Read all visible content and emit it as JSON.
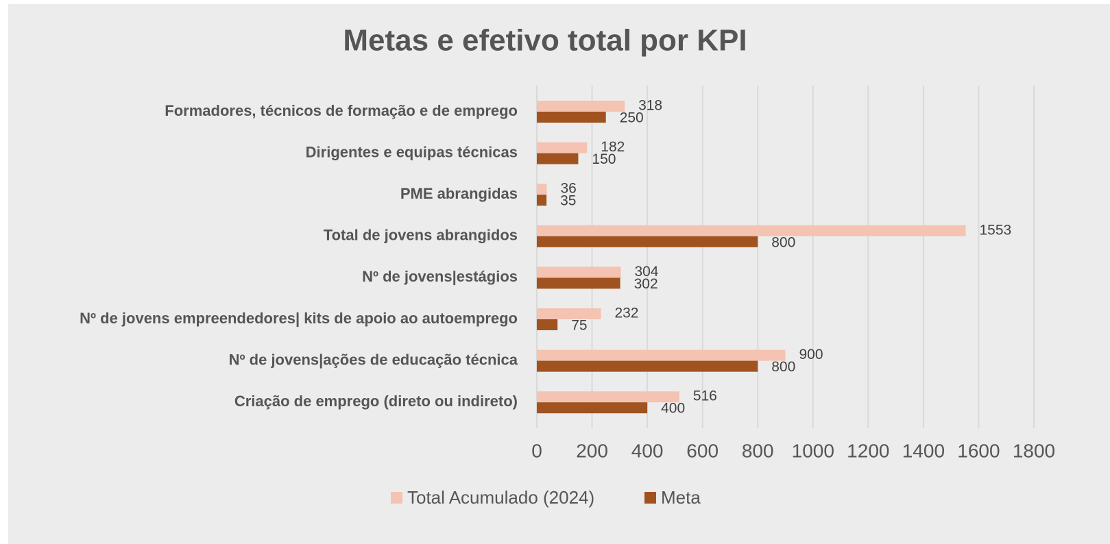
{
  "chart_data": {
    "type": "hbar",
    "title": "Metas e efetivo total por KPI",
    "categories": [
      "Formadores, técnicos de formação e de emprego",
      "Dirigentes e equipas técnicas",
      "PME abrangidas",
      "Total de jovens abrangidos",
      "Nº de jovens|estágios",
      "Nº de jovens empreendedores| kits de apoio ao autoemprego",
      "Nº de jovens|ações de educação técnica",
      "Criação de emprego (direto ou indireto)"
    ],
    "series": [
      {
        "name": "Total Acumulado (2024)",
        "color": "#f4c3b2",
        "values": [
          318,
          182,
          36,
          1553,
          304,
          232,
          900,
          516
        ]
      },
      {
        "name": "Meta",
        "color": "#a0521f",
        "values": [
          250,
          150,
          35,
          800,
          302,
          75,
          800,
          400
        ]
      }
    ],
    "xlim": [
      0,
      1800
    ],
    "xticks": [
      0,
      200,
      400,
      600,
      800,
      1000,
      1200,
      1400,
      1600,
      1800
    ],
    "grid": true,
    "legend": "bottom"
  }
}
